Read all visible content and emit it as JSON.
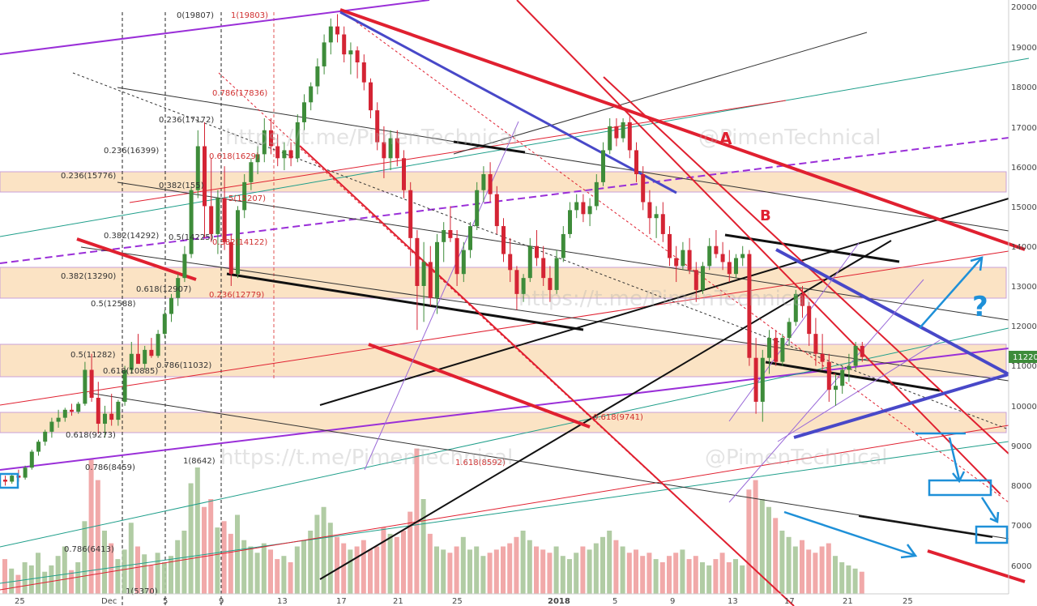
{
  "chart_data": {
    "type": "candlestick",
    "title": "",
    "price_axis": {
      "ticks": [
        20000,
        19000,
        18000,
        17000,
        16000,
        15000,
        14000,
        13000,
        12000,
        11000,
        10000,
        9000,
        8000,
        7000,
        6000
      ],
      "ylim": [
        5500,
        20200
      ],
      "current_price": "11220"
    },
    "time_axis": {
      "ticks": [
        "25",
        "Dec",
        "5",
        "9",
        "13",
        "17",
        "21",
        "25",
        "2018",
        "5",
        "9",
        "13",
        "17",
        "21",
        "25"
      ]
    },
    "fib_labels": [
      "0(19807)",
      "1(19803)",
      "0.786(17836)",
      "0.236(17172)",
      "0.236(16399)",
      "0.618(1629)",
      "0.236(15776)",
      "0.382(155)",
      "5(15207)",
      "0.382(14292)",
      "0.5(14225)",
      "0.382(14122)",
      "0.382(13290)",
      "0.618(12907)",
      "0.236(12779)",
      "0.5(12588)",
      "0.5(11282)",
      "0.618(10885)",
      "0.786(11032)",
      "0.618(9741)",
      "0.618(9273)",
      "0.786(8459)",
      "1(8642)",
      "1.618(8592)",
      "0.786(6413)",
      "1(5370)"
    ],
    "annotations": [
      "A",
      "B",
      "?"
    ],
    "watermarks": [
      "https://t.me/PimenTechnical",
      "@PimenTechnical"
    ],
    "colors": {
      "up": "#3e8c3a",
      "down": "#d42434",
      "volume_up": "#a8c79a",
      "volume_down": "#f0a0a0",
      "zone": "#fbe3c4",
      "red_line": "#e02030",
      "blue_line": "#4848c8",
      "purple_line": "#9a2fd8",
      "teal_line": "#1e9e8a",
      "cyan_hand": "#1e90d8"
    },
    "candles": [
      [
        8150,
        8250,
        8000,
        8100
      ],
      [
        8100,
        8300,
        8050,
        8250
      ],
      [
        8250,
        8400,
        8100,
        8200
      ],
      [
        8200,
        8500,
        8150,
        8450
      ],
      [
        8450,
        8900,
        8400,
        8850
      ],
      [
        8850,
        9150,
        8750,
        9100
      ],
      [
        9100,
        9400,
        9000,
        9350
      ],
      [
        9350,
        9700,
        9200,
        9600
      ],
      [
        9600,
        9900,
        9450,
        9700
      ],
      [
        9700,
        9950,
        9600,
        9900
      ],
      [
        9900,
        10050,
        9750,
        9850
      ],
      [
        9850,
        10100,
        9800,
        10050
      ],
      [
        10050,
        11100,
        10000,
        10900
      ],
      [
        10900,
        11300,
        10100,
        10200
      ],
      [
        10200,
        10600,
        9300,
        9550
      ],
      [
        9550,
        10000,
        9200,
        9800
      ],
      [
        9800,
        10300,
        9500,
        9650
      ],
      [
        9650,
        10150,
        9500,
        10100
      ],
      [
        10100,
        11000,
        10000,
        10900
      ],
      [
        10900,
        11600,
        10800,
        11300
      ],
      [
        11300,
        11800,
        11100,
        11050
      ],
      [
        11050,
        11500,
        10900,
        11400
      ],
      [
        11400,
        11700,
        11200,
        11250
      ],
      [
        11250,
        11900,
        11200,
        11800
      ],
      [
        11800,
        12400,
        11700,
        12300
      ],
      [
        12300,
        12800,
        12100,
        12700
      ],
      [
        12700,
        13300,
        12500,
        13200
      ],
      [
        13200,
        14000,
        13100,
        13800
      ],
      [
        13800,
        15500,
        13700,
        15400
      ],
      [
        15400,
        16900,
        15200,
        16500
      ],
      [
        16500,
        17100,
        14200,
        15000
      ],
      [
        15000,
        16200,
        14100,
        14300
      ],
      [
        14300,
        15400,
        13800,
        15200
      ],
      [
        15200,
        16000,
        13900,
        14100
      ],
      [
        14100,
        14300,
        13000,
        13300
      ],
      [
        13300,
        15000,
        13200,
        14900
      ],
      [
        14900,
        15800,
        14700,
        15600
      ],
      [
        15600,
        16200,
        15400,
        16100
      ],
      [
        16100,
        16500,
        15800,
        16300
      ],
      [
        16300,
        17200,
        16100,
        16900
      ],
      [
        16900,
        17200,
        16300,
        16500
      ],
      [
        16500,
        16800,
        16000,
        16200
      ],
      [
        16200,
        16600,
        15900,
        16400
      ],
      [
        16400,
        16600,
        16000,
        16200
      ],
      [
        16200,
        17300,
        16100,
        17100
      ],
      [
        17100,
        17800,
        16900,
        17600
      ],
      [
        17600,
        18100,
        17400,
        18000
      ],
      [
        18000,
        18700,
        17800,
        18500
      ],
      [
        18500,
        19300,
        18300,
        19100
      ],
      [
        19100,
        19700,
        18800,
        19500
      ],
      [
        19500,
        19807,
        19100,
        19300
      ],
      [
        19300,
        19500,
        18600,
        18800
      ],
      [
        18800,
        19100,
        18300,
        18900
      ],
      [
        18900,
        19000,
        18200,
        18600
      ],
      [
        18600,
        18800,
        17900,
        18100
      ],
      [
        18100,
        18200,
        17200,
        17400
      ],
      [
        17400,
        17600,
        16400,
        16600
      ],
      [
        16600,
        17000,
        15700,
        16200
      ],
      [
        16200,
        16900,
        15900,
        16700
      ],
      [
        16700,
        16900,
        16000,
        16200
      ],
      [
        16200,
        16400,
        15200,
        15400
      ],
      [
        15400,
        15600,
        13500,
        14200
      ],
      [
        14200,
        14400,
        11900,
        13000
      ],
      [
        13000,
        14100,
        12100,
        13600
      ],
      [
        13600,
        14000,
        12500,
        12700
      ],
      [
        12700,
        14300,
        12300,
        14100
      ],
      [
        14100,
        14600,
        13600,
        14400
      ],
      [
        14400,
        15000,
        14100,
        14200
      ],
      [
        14200,
        14400,
        13000,
        13300
      ],
      [
        13300,
        14100,
        13100,
        13900
      ],
      [
        13900,
        14600,
        13700,
        14500
      ],
      [
        14500,
        15600,
        14400,
        15400
      ],
      [
        15400,
        16000,
        15100,
        15800
      ],
      [
        15800,
        16100,
        15100,
        15300
      ],
      [
        15300,
        15500,
        14300,
        14500
      ],
      [
        14500,
        14700,
        13600,
        13800
      ],
      [
        13800,
        14200,
        13100,
        13400
      ],
      [
        13400,
        13500,
        12400,
        12800
      ],
      [
        12800,
        13300,
        12600,
        13200
      ],
      [
        13200,
        14200,
        13100,
        14000
      ],
      [
        14000,
        14400,
        13500,
        13700
      ],
      [
        13700,
        14000,
        13000,
        13200
      ],
      [
        13200,
        13500,
        12600,
        12900
      ],
      [
        12900,
        13900,
        12800,
        13700
      ],
      [
        13700,
        14500,
        13600,
        14300
      ],
      [
        14300,
        15100,
        14200,
        14900
      ],
      [
        14900,
        15300,
        14700,
        15100
      ],
      [
        15100,
        15300,
        14600,
        14800
      ],
      [
        14800,
        15200,
        14500,
        15000
      ],
      [
        15000,
        15800,
        14900,
        15600
      ],
      [
        15600,
        16600,
        15500,
        16400
      ],
      [
        16400,
        17200,
        16300,
        17000
      ],
      [
        17000,
        17200,
        16500,
        16700
      ],
      [
        16700,
        17200,
        16600,
        17100
      ],
      [
        17100,
        17300,
        16200,
        16400
      ],
      [
        16400,
        16600,
        15600,
        15800
      ],
      [
        15800,
        16000,
        14900,
        15100
      ],
      [
        15100,
        15400,
        14300,
        14700
      ],
      [
        14700,
        15000,
        14200,
        14800
      ],
      [
        14800,
        15100,
        14100,
        14300
      ],
      [
        14300,
        14500,
        13500,
        13700
      ],
      [
        13700,
        14000,
        13100,
        13500
      ],
      [
        13500,
        14100,
        13400,
        13900
      ],
      [
        13900,
        14200,
        13300,
        13400
      ],
      [
        13400,
        13600,
        12600,
        12900
      ],
      [
        12900,
        13600,
        12800,
        13500
      ],
      [
        13500,
        14200,
        13400,
        14000
      ],
      [
        14000,
        14400,
        13700,
        13800
      ],
      [
        13800,
        14100,
        13400,
        13600
      ],
      [
        13600,
        13900,
        13100,
        13300
      ],
      [
        13300,
        13800,
        13200,
        13700
      ],
      [
        13700,
        14000,
        13500,
        13800
      ],
      [
        13800,
        13900,
        11000,
        11200
      ],
      [
        11200,
        11700,
        9800,
        10100
      ],
      [
        10100,
        11400,
        9600,
        11200
      ],
      [
        11200,
        11900,
        10800,
        11700
      ],
      [
        11700,
        11900,
        11000,
        11100
      ],
      [
        11100,
        11800,
        11000,
        11700
      ],
      [
        11700,
        12200,
        11500,
        12100
      ],
      [
        12100,
        12900,
        12000,
        12800
      ],
      [
        12800,
        13000,
        12200,
        12500
      ],
      [
        12500,
        12600,
        11500,
        11800
      ],
      [
        11800,
        12200,
        11000,
        11300
      ],
      [
        11300,
        11800,
        10900,
        11100
      ],
      [
        11100,
        11300,
        10100,
        10400
      ],
      [
        10400,
        10800,
        10000,
        10500
      ],
      [
        10500,
        11000,
        10300,
        10900
      ],
      [
        10900,
        11300,
        10600,
        11000
      ],
      [
        11000,
        11600,
        10900,
        11500
      ],
      [
        11500,
        11600,
        11100,
        11220
      ]
    ],
    "volume_pct": [
      0.22,
      0.16,
      0.12,
      0.2,
      0.18,
      0.26,
      0.14,
      0.18,
      0.24,
      0.3,
      0.15,
      0.2,
      0.46,
      0.85,
      0.72,
      0.4,
      0.32,
      0.22,
      0.28,
      0.45,
      0.3,
      0.25,
      0.18,
      0.26,
      0.2,
      0.24,
      0.34,
      0.4,
      0.7,
      0.8,
      0.55,
      0.6,
      0.42,
      0.46,
      0.38,
      0.5,
      0.34,
      0.3,
      0.26,
      0.32,
      0.28,
      0.22,
      0.24,
      0.2,
      0.3,
      0.34,
      0.4,
      0.5,
      0.55,
      0.45,
      0.36,
      0.32,
      0.28,
      0.3,
      0.34,
      0.28,
      0.3,
      0.42,
      0.38,
      0.36,
      0.4,
      0.52,
      0.92,
      0.6,
      0.38,
      0.3,
      0.28,
      0.26,
      0.3,
      0.36,
      0.28,
      0.3,
      0.24,
      0.26,
      0.28,
      0.3,
      0.32,
      0.36,
      0.4,
      0.34,
      0.3,
      0.28,
      0.26,
      0.3,
      0.24,
      0.22,
      0.26,
      0.3,
      0.28,
      0.32,
      0.36,
      0.4,
      0.34,
      0.3,
      0.26,
      0.28,
      0.24,
      0.26,
      0.22,
      0.2,
      0.24,
      0.26,
      0.28,
      0.22,
      0.24,
      0.2,
      0.18,
      0.22,
      0.26,
      0.2,
      0.22,
      0.18,
      0.66,
      0.72,
      0.6,
      0.55,
      0.48,
      0.4,
      0.36,
      0.3,
      0.34,
      0.28,
      0.26,
      0.3,
      0.32,
      0.24,
      0.2,
      0.18,
      0.16,
      0.14
    ]
  }
}
